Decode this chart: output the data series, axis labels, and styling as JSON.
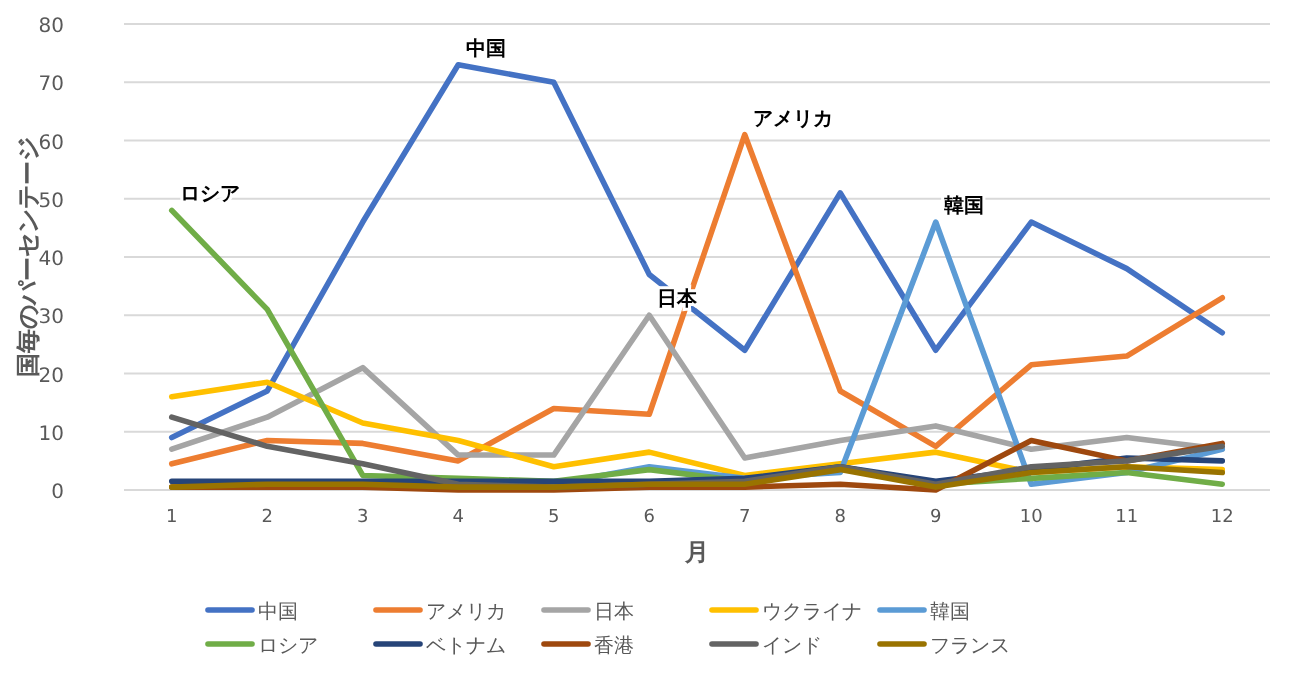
{
  "chart_data": {
    "type": "line",
    "xlabel": "月",
    "ylabel": "国毎のパーセンテージ",
    "x": [
      1,
      2,
      3,
      4,
      5,
      6,
      7,
      8,
      9,
      10,
      11,
      12
    ],
    "xlim": [
      0.5,
      12.5
    ],
    "xticks": [
      1,
      2,
      3,
      4,
      5,
      6,
      7,
      8,
      9,
      10,
      11,
      12
    ],
    "ylim": [
      0,
      80
    ],
    "yticks": [
      0,
      10,
      20,
      30,
      40,
      50,
      60,
      70,
      80
    ],
    "grid": "y",
    "legend": "bottom",
    "series": [
      {
        "name": "中国",
        "color": "#4472c4",
        "values": [
          9,
          17,
          46,
          73,
          70,
          37,
          24,
          51,
          24,
          46,
          38,
          27
        ]
      },
      {
        "name": "アメリカ",
        "color": "#ed7d31",
        "values": [
          4.5,
          8.5,
          8,
          5,
          14,
          13,
          61,
          17,
          7.5,
          21.5,
          23,
          33
        ]
      },
      {
        "name": "日本",
        "color": "#a5a5a5",
        "values": [
          7,
          12.5,
          21,
          6,
          6,
          30,
          5.5,
          8.5,
          11,
          7,
          9,
          7
        ]
      },
      {
        "name": "ウクライナ",
        "color": "#ffc000",
        "values": [
          16,
          18.5,
          11.5,
          8.5,
          4,
          6.5,
          2.5,
          4.5,
          6.5,
          3,
          4,
          3.5
        ]
      },
      {
        "name": "韓国",
        "color": "#5b9bd5",
        "values": [
          null,
          null,
          null,
          1,
          1,
          4,
          2,
          3,
          46,
          1,
          3,
          7
        ]
      },
      {
        "name": "ロシア",
        "color": "#70ad47",
        "values": [
          48,
          31,
          2.5,
          2,
          1.5,
          3.5,
          1.5,
          4,
          1,
          2,
          3,
          1
        ]
      },
      {
        "name": "ベトナム",
        "color": "#264478",
        "values": [
          1.5,
          1.5,
          1.5,
          1.5,
          1.5,
          1.5,
          2,
          4,
          1.5,
          3.5,
          5.5,
          5
        ]
      },
      {
        "name": "香港",
        "color": "#9e480e",
        "values": [
          0.5,
          0.5,
          0.5,
          0,
          0,
          0.5,
          0.5,
          1,
          0,
          8.5,
          5,
          8
        ]
      },
      {
        "name": "インド",
        "color": "#636363",
        "values": [
          12.5,
          7.5,
          4.5,
          1,
          0.5,
          1,
          1.5,
          4,
          1,
          4,
          5,
          7.5
        ]
      },
      {
        "name": "フランス",
        "color": "#997300",
        "values": [
          0.5,
          1,
          1,
          0.5,
          0.5,
          1,
          1,
          3.5,
          0.5,
          3,
          4,
          3
        ]
      }
    ],
    "annotations": [
      {
        "text": "中国",
        "x": 4,
        "y": 73
      },
      {
        "text": "アメリカ",
        "x": 7,
        "y": 61
      },
      {
        "text": "日本",
        "x": 6,
        "y": 30
      },
      {
        "text": "韓国",
        "x": 9,
        "y": 46
      },
      {
        "text": "ロシア",
        "x": 1,
        "y": 48
      }
    ]
  }
}
